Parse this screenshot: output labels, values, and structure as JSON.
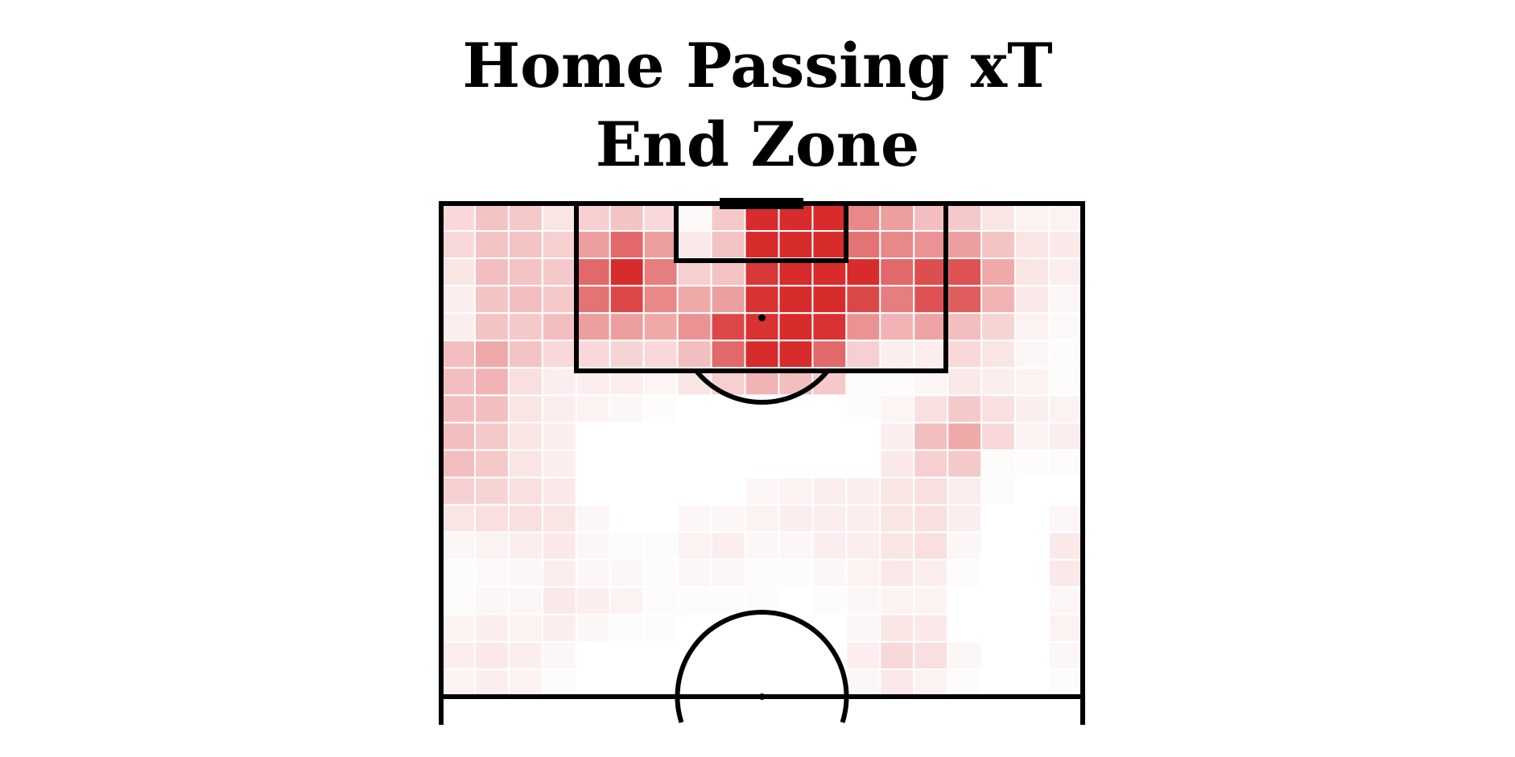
{
  "chart_data": {
    "type": "heatmap",
    "title": [
      "Home Passing xT",
      "End Zone"
    ],
    "xlabel": "",
    "ylabel": "",
    "grid": true,
    "legend": "none",
    "colormap": [
      "#ffffff",
      "#d62728"
    ],
    "line_color": "#000000",
    "grid_color": "#ffffff",
    "rows_top_to_bottom": 18,
    "cols_left_to_right": 19,
    "values": [
      [
        0.18,
        0.28,
        0.25,
        0.12,
        0.22,
        0.28,
        0.18,
        0.03,
        0.25,
        0.98,
        0.98,
        0.98,
        0.55,
        0.45,
        0.3,
        0.25,
        0.12,
        0.06,
        0.06
      ],
      [
        0.18,
        0.28,
        0.28,
        0.22,
        0.45,
        0.7,
        0.45,
        0.1,
        0.28,
        0.98,
        0.98,
        0.98,
        0.65,
        0.55,
        0.5,
        0.45,
        0.28,
        0.12,
        0.1
      ],
      [
        0.12,
        0.3,
        0.28,
        0.25,
        0.7,
        0.98,
        0.6,
        0.22,
        0.28,
        0.92,
        0.98,
        0.98,
        0.98,
        0.7,
        0.82,
        0.8,
        0.4,
        0.12,
        0.08
      ],
      [
        0.08,
        0.28,
        0.3,
        0.25,
        0.65,
        0.85,
        0.55,
        0.4,
        0.45,
        0.95,
        0.98,
        0.98,
        0.85,
        0.6,
        0.8,
        0.75,
        0.35,
        0.1,
        0.04
      ],
      [
        0.08,
        0.28,
        0.25,
        0.3,
        0.45,
        0.45,
        0.4,
        0.5,
        0.85,
        0.95,
        0.98,
        0.95,
        0.5,
        0.35,
        0.42,
        0.3,
        0.2,
        0.06,
        0.03
      ],
      [
        0.3,
        0.4,
        0.28,
        0.18,
        0.18,
        0.2,
        0.18,
        0.3,
        0.7,
        0.98,
        0.98,
        0.7,
        0.22,
        0.08,
        0.08,
        0.18,
        0.12,
        0.04,
        0.02
      ],
      [
        0.3,
        0.35,
        0.15,
        0.08,
        0.08,
        0.08,
        0.05,
        0.12,
        0.22,
        0.35,
        0.3,
        0.25,
        0.02,
        0.02,
        0.04,
        0.1,
        0.08,
        0.06,
        0.02
      ],
      [
        0.3,
        0.3,
        0.12,
        0.08,
        0.06,
        0.04,
        0.02,
        0.0,
        0.0,
        0.0,
        0.0,
        0.0,
        0.02,
        0.05,
        0.15,
        0.25,
        0.15,
        0.08,
        0.06
      ],
      [
        0.3,
        0.25,
        0.12,
        0.08,
        0.0,
        0.0,
        0.0,
        0.0,
        0.0,
        0.0,
        0.0,
        0.0,
        0.0,
        0.08,
        0.3,
        0.4,
        0.18,
        0.06,
        0.08
      ],
      [
        0.3,
        0.25,
        0.12,
        0.08,
        0.0,
        0.0,
        0.0,
        0.0,
        0.0,
        0.0,
        0.0,
        0.0,
        0.0,
        0.1,
        0.22,
        0.25,
        0.02,
        0.02,
        0.02
      ],
      [
        0.22,
        0.2,
        0.15,
        0.1,
        0.0,
        0.0,
        0.0,
        0.0,
        0.0,
        0.04,
        0.06,
        0.08,
        0.08,
        0.12,
        0.15,
        0.08,
        0.02,
        0.0,
        0.0
      ],
      [
        0.12,
        0.15,
        0.15,
        0.12,
        0.04,
        0.0,
        0.0,
        0.04,
        0.04,
        0.06,
        0.08,
        0.08,
        0.08,
        0.12,
        0.15,
        0.08,
        0.0,
        0.0,
        0.04
      ],
      [
        0.04,
        0.06,
        0.08,
        0.1,
        0.04,
        0.02,
        0.02,
        0.06,
        0.08,
        0.04,
        0.04,
        0.08,
        0.08,
        0.12,
        0.15,
        0.04,
        0.0,
        0.0,
        0.1
      ],
      [
        0.02,
        0.03,
        0.04,
        0.08,
        0.04,
        0.04,
        0.02,
        0.04,
        0.04,
        0.02,
        0.02,
        0.04,
        0.06,
        0.1,
        0.08,
        0.02,
        0.0,
        0.0,
        0.1
      ],
      [
        0.02,
        0.04,
        0.04,
        0.1,
        0.08,
        0.06,
        0.02,
        0.02,
        0.02,
        0.02,
        0.0,
        0.02,
        0.04,
        0.06,
        0.06,
        0.0,
        0.0,
        0.0,
        0.04
      ],
      [
        0.06,
        0.08,
        0.06,
        0.08,
        0.04,
        0.02,
        0.02,
        0.0,
        0.0,
        0.0,
        0.0,
        0.0,
        0.04,
        0.12,
        0.1,
        0.0,
        0.0,
        0.0,
        0.06
      ],
      [
        0.08,
        0.1,
        0.08,
        0.04,
        0.0,
        0.0,
        0.0,
        0.0,
        0.0,
        0.0,
        0.0,
        0.0,
        0.08,
        0.18,
        0.15,
        0.04,
        0.0,
        0.0,
        0.04
      ],
      [
        0.06,
        0.08,
        0.06,
        0.02,
        0.0,
        0.0,
        0.0,
        0.0,
        0.0,
        0.0,
        0.0,
        0.0,
        0.04,
        0.1,
        0.06,
        0.02,
        0.0,
        0.0,
        0.02
      ]
    ]
  }
}
